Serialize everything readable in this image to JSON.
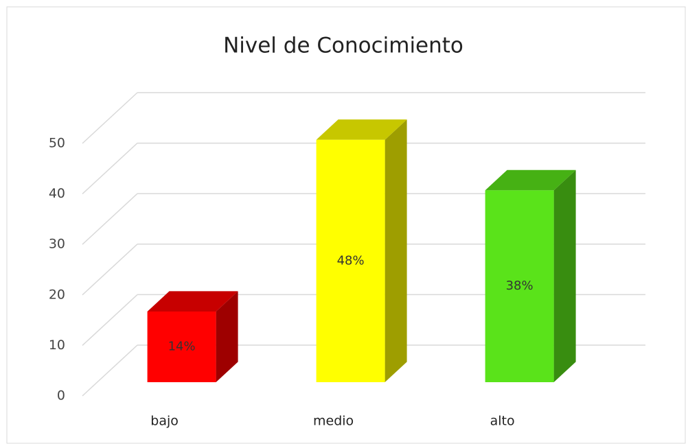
{
  "chart_data": {
    "type": "bar3d",
    "title": "Nivel de Conocimiento",
    "categories": [
      "bajo",
      "medio",
      "alto"
    ],
    "values": [
      14,
      48,
      38
    ],
    "value_labels": [
      "14%",
      "48%",
      "38%"
    ],
    "colors": [
      "#ff0000",
      "#ffff00",
      "#5ae31a"
    ],
    "ylim": [
      0,
      50
    ],
    "yticks": [
      0,
      10,
      20,
      30,
      40,
      50
    ],
    "grid": true
  }
}
